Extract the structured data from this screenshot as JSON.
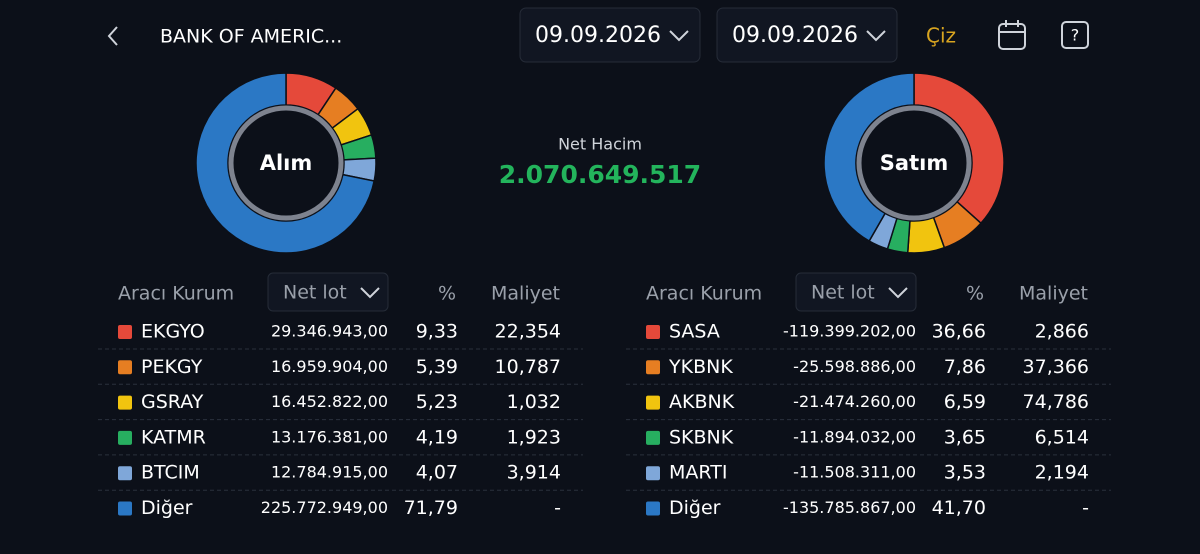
{
  "header": {
    "title": "BANK OF AMERIC...",
    "date_from": "09.09.2026",
    "date_to": "09.09.2026",
    "draw_button": "Çiz"
  },
  "summary": {
    "label": "Net Hacim",
    "value": "2.070.649.517"
  },
  "table_headers": {
    "broker": "Aracı Kurum",
    "net_lot": "Net lot",
    "pct": "%",
    "cost": "Maliyet"
  },
  "buy": {
    "title": "Alım",
    "rows": [
      {
        "name": "EKGYO",
        "color": "#e5493a",
        "lot": "29.346.943,00",
        "pct": {
          "value": 9.33,
          "label": "9,33"
        },
        "cost": "22,354"
      },
      {
        "name": "PEKGY",
        "color": "#e67e22",
        "lot": "16.959.904,00",
        "pct": {
          "value": 5.39,
          "label": "5,39"
        },
        "cost": "10,787"
      },
      {
        "name": "GSRAY",
        "color": "#f1c40f",
        "lot": "16.452.822,00",
        "pct": {
          "value": 5.23,
          "label": "5,23"
        },
        "cost": "1,032"
      },
      {
        "name": "KATMR",
        "color": "#27ae60",
        "lot": "13.176.381,00",
        "pct": {
          "value": 4.19,
          "label": "4,19"
        },
        "cost": "1,923"
      },
      {
        "name": "BTCIM",
        "color": "#7fa7d9",
        "lot": "12.784.915,00",
        "pct": {
          "value": 4.07,
          "label": "4,07"
        },
        "cost": "3,914"
      },
      {
        "name": "Diğer",
        "color": "#2b78c5",
        "lot": "225.772.949,00",
        "pct": {
          "value": 71.79,
          "label": "71,79"
        },
        "cost": "-"
      }
    ]
  },
  "sell": {
    "title": "Satım",
    "rows": [
      {
        "name": "SASA",
        "color": "#e5493a",
        "lot": "-119.399.202,00",
        "pct": {
          "value": 36.66,
          "label": "36,66"
        },
        "cost": "2,866"
      },
      {
        "name": "YKBNK",
        "color": "#e67e22",
        "lot": "-25.598.886,00",
        "pct": {
          "value": 7.86,
          "label": "7,86"
        },
        "cost": "37,366"
      },
      {
        "name": "AKBNK",
        "color": "#f1c40f",
        "lot": "-21.474.260,00",
        "pct": {
          "value": 6.59,
          "label": "6,59"
        },
        "cost": "74,786"
      },
      {
        "name": "SKBNK",
        "color": "#27ae60",
        "lot": "-11.894.032,00",
        "pct": {
          "value": 3.65,
          "label": "3,65"
        },
        "cost": "6,514"
      },
      {
        "name": "MARTI",
        "color": "#7fa7d9",
        "lot": "-11.508.311,00",
        "pct": {
          "value": 3.53,
          "label": "3,53"
        },
        "cost": "2,194"
      },
      {
        "name": "Diğer",
        "color": "#2b78c5",
        "lot": "-135.785.867,00",
        "pct": {
          "value": 41.7,
          "label": "41,70"
        },
        "cost": "-"
      }
    ]
  }
}
